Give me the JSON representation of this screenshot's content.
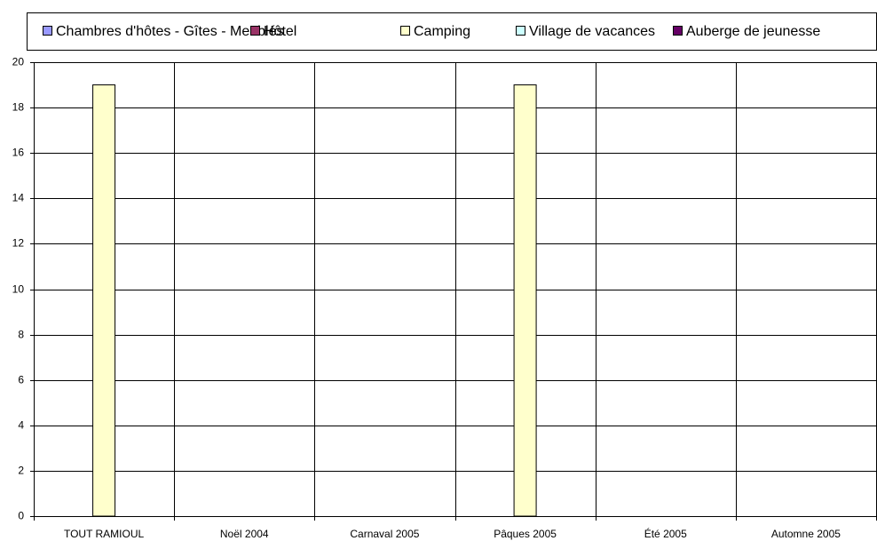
{
  "chart_data": {
    "type": "bar",
    "categories": [
      "TOUT RAMIOUL",
      "Noël 2004",
      "Carnaval 2005",
      "Pâques 2005",
      "Été 2005",
      "Automne 2005"
    ],
    "series": [
      {
        "name": "Chambres d'hôtes - Gîtes - Meublés",
        "color": "#9999ff",
        "values": [
          0,
          0,
          0,
          0,
          0,
          0
        ]
      },
      {
        "name": "Hôtel",
        "color": "#993366",
        "values": [
          0,
          0,
          0,
          0,
          0,
          0
        ]
      },
      {
        "name": "Camping",
        "color": "#ffffcc",
        "values": [
          19,
          0,
          0,
          19,
          0,
          0
        ]
      },
      {
        "name": "Village de vacances",
        "color": "#ccffff",
        "values": [
          0,
          0,
          0,
          0,
          0,
          0
        ]
      },
      {
        "name": "Auberge de jeunesse",
        "color": "#660066",
        "values": [
          0,
          0,
          0,
          0,
          0,
          0
        ]
      }
    ],
    "ylim": [
      0,
      20
    ],
    "yticks": [
      0,
      2,
      4,
      6,
      8,
      10,
      12,
      14,
      16,
      18,
      20
    ],
    "grid": true,
    "legend": "top"
  }
}
